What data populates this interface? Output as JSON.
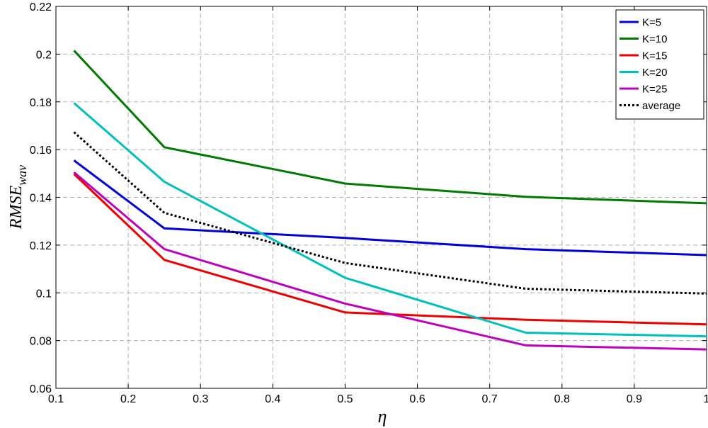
{
  "chart_data": {
    "type": "line",
    "xlabel": "η",
    "ylabel_main": "RMSE",
    "ylabel_sub": "wav",
    "xlim": [
      0.1,
      1
    ],
    "ylim": [
      0.06,
      0.22
    ],
    "xticks": [
      0.1,
      0.2,
      0.3,
      0.4,
      0.5,
      0.6,
      0.7,
      0.8,
      0.9,
      1
    ],
    "xtick_labels": [
      "0.1",
      "0.2",
      "0.3",
      "0.4",
      "0.5",
      "0.6",
      "0.7",
      "0.8",
      "0.9",
      "1"
    ],
    "yticks": [
      0.06,
      0.08,
      0.1,
      0.12,
      0.14,
      0.16,
      0.18,
      0.2,
      0.22
    ],
    "ytick_labels": [
      "0.06",
      "0.08",
      "0.1",
      "0.12",
      "0.14",
      "0.16",
      "0.18",
      "0.2",
      "0.22"
    ],
    "grid": true,
    "legend_position": "top-right",
    "x": [
      0.125,
      0.25,
      0.5,
      0.75,
      1.0
    ],
    "series": [
      {
        "name": "K=5",
        "color": "#0000dd",
        "dash": "solid",
        "values": [
          0.1555,
          0.127,
          0.123,
          0.1183,
          0.1158
        ]
      },
      {
        "name": "K=10",
        "color": "#007a00",
        "dash": "solid",
        "values": [
          0.2015,
          0.161,
          0.1458,
          0.1402,
          0.1375
        ]
      },
      {
        "name": "K=15",
        "color": "#ee0000",
        "dash": "solid",
        "values": [
          0.1498,
          0.1138,
          0.0918,
          0.0887,
          0.0868
        ]
      },
      {
        "name": "K=20",
        "color": "#00bfbf",
        "dash": "solid",
        "values": [
          0.1795,
          0.1465,
          0.1063,
          0.0833,
          0.0818
        ]
      },
      {
        "name": "K=25",
        "color": "#bf00bf",
        "dash": "solid",
        "values": [
          0.1505,
          0.1183,
          0.0955,
          0.078,
          0.0763
        ]
      },
      {
        "name": "average",
        "color": "#000000",
        "dash": "dotted",
        "values": [
          0.1673,
          0.1335,
          0.1125,
          0.1017,
          0.0997
        ]
      }
    ]
  }
}
